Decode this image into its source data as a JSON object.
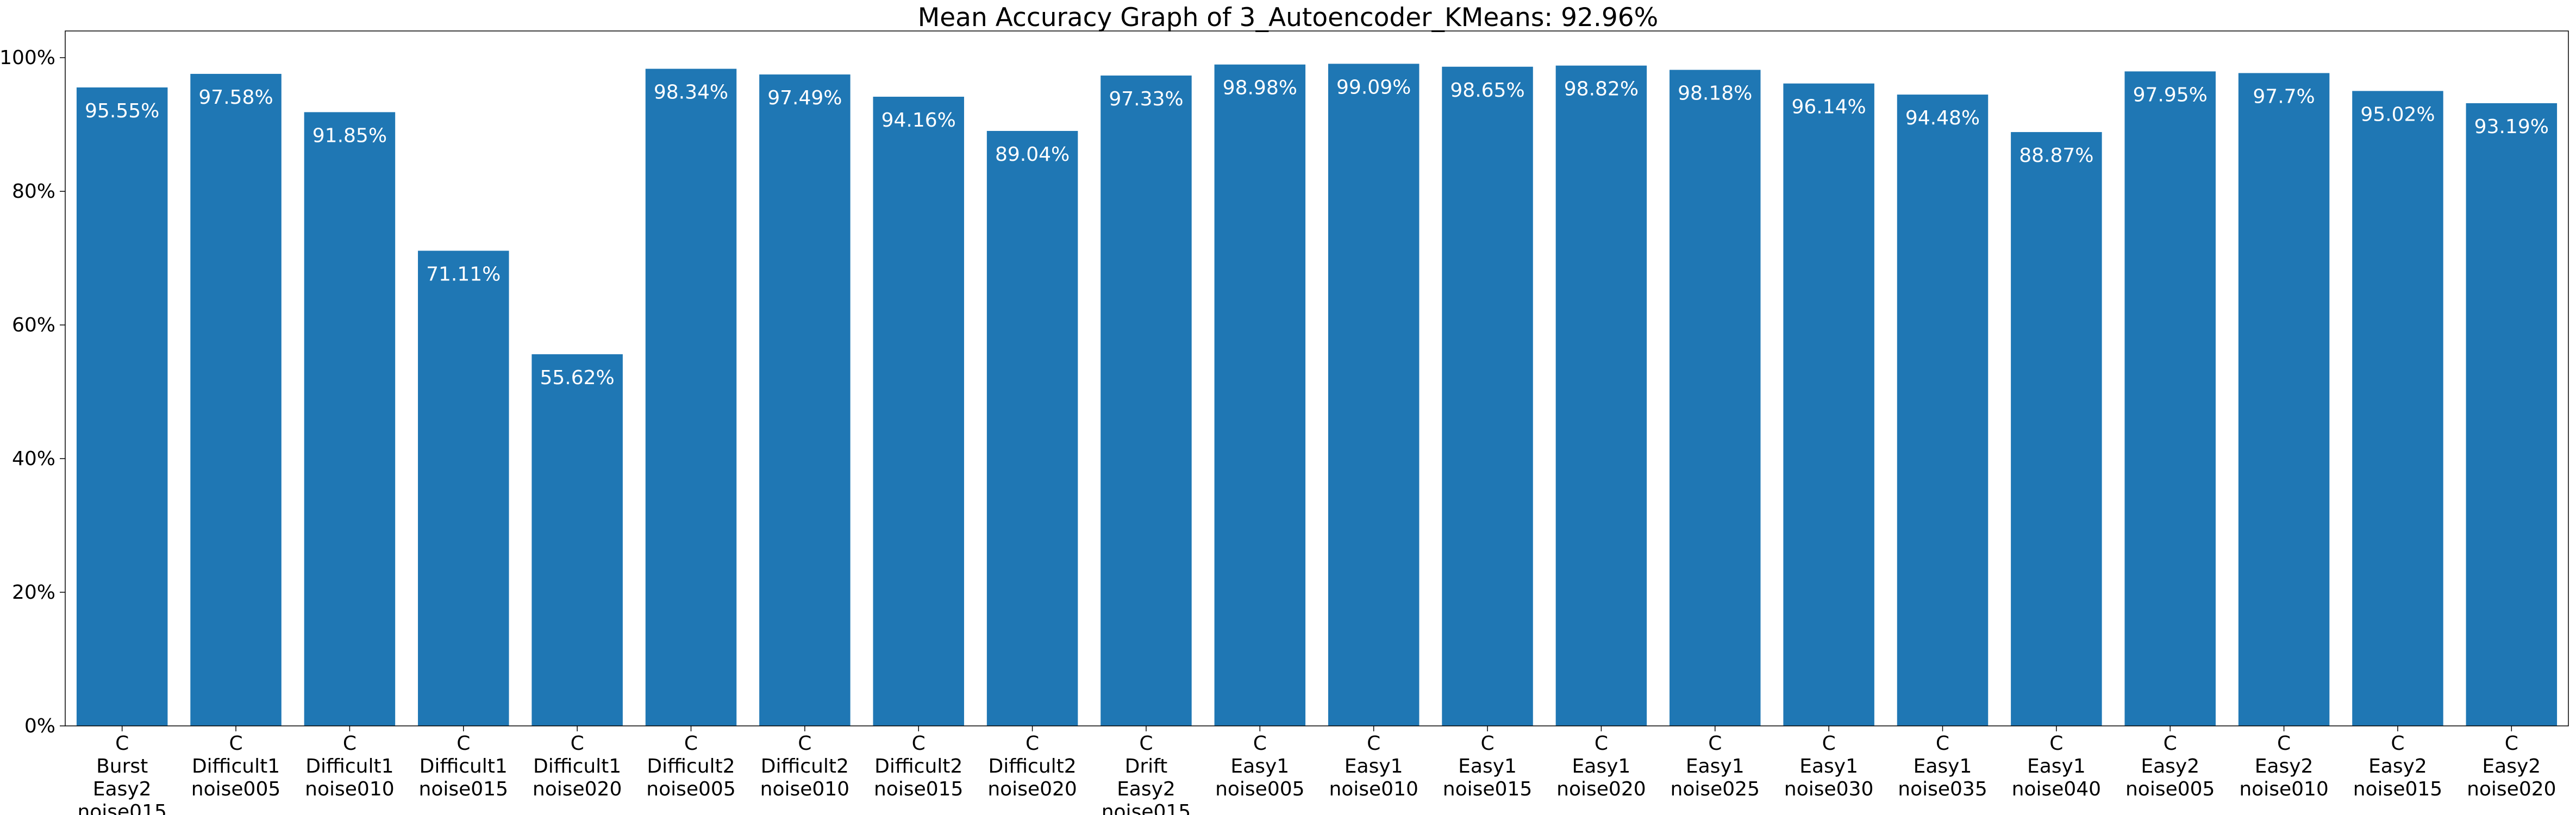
{
  "chart_data": {
    "type": "bar",
    "title": "Mean Accuracy Graph of 3_Autoencoder_KMeans: 92.96%",
    "xlabel": "",
    "ylabel": "",
    "ylim": [
      0,
      104
    ],
    "yticks": [
      {
        "value": 0,
        "label": "0%"
      },
      {
        "value": 20,
        "label": "20%"
      },
      {
        "value": 40,
        "label": "40%"
      },
      {
        "value": 60,
        "label": "60%"
      },
      {
        "value": 80,
        "label": "80%"
      },
      {
        "value": 100,
        "label": "100%"
      }
    ],
    "grid": false,
    "bar_color": "#1f77b4",
    "label_color": "#ffffff",
    "categories": [
      [
        "C",
        "Burst",
        "Easy2",
        "noise015"
      ],
      [
        "C",
        "Difficult1",
        "noise005"
      ],
      [
        "C",
        "Difficult1",
        "noise010"
      ],
      [
        "C",
        "Difficult1",
        "noise015"
      ],
      [
        "C",
        "Difficult1",
        "noise020"
      ],
      [
        "C",
        "Difficult2",
        "noise005"
      ],
      [
        "C",
        "Difficult2",
        "noise010"
      ],
      [
        "C",
        "Difficult2",
        "noise015"
      ],
      [
        "C",
        "Difficult2",
        "noise020"
      ],
      [
        "C",
        "Drift",
        "Easy2",
        "noise015"
      ],
      [
        "C",
        "Easy1",
        "noise005"
      ],
      [
        "C",
        "Easy1",
        "noise010"
      ],
      [
        "C",
        "Easy1",
        "noise015"
      ],
      [
        "C",
        "Easy1",
        "noise020"
      ],
      [
        "C",
        "Easy1",
        "noise025"
      ],
      [
        "C",
        "Easy1",
        "noise030"
      ],
      [
        "C",
        "Easy1",
        "noise035"
      ],
      [
        "C",
        "Easy1",
        "noise040"
      ],
      [
        "C",
        "Easy2",
        "noise005"
      ],
      [
        "C",
        "Easy2",
        "noise010"
      ],
      [
        "C",
        "Easy2",
        "noise015"
      ],
      [
        "C",
        "Easy2",
        "noise020"
      ]
    ],
    "values": [
      95.55,
      97.58,
      91.85,
      71.11,
      55.62,
      98.34,
      97.49,
      94.16,
      89.04,
      97.33,
      98.98,
      99.09,
      98.65,
      98.82,
      98.18,
      96.14,
      94.48,
      88.87,
      97.95,
      97.7,
      95.02,
      93.19
    ],
    "value_labels": [
      "95.55%",
      "97.58%",
      "91.85%",
      "71.11%",
      "55.62%",
      "98.34%",
      "97.49%",
      "94.16%",
      "89.04%",
      "97.33%",
      "98.98%",
      "99.09%",
      "98.65%",
      "98.82%",
      "98.18%",
      "96.14%",
      "94.48%",
      "88.87%",
      "97.95%",
      "97.7%",
      "95.02%",
      "93.19%"
    ]
  }
}
